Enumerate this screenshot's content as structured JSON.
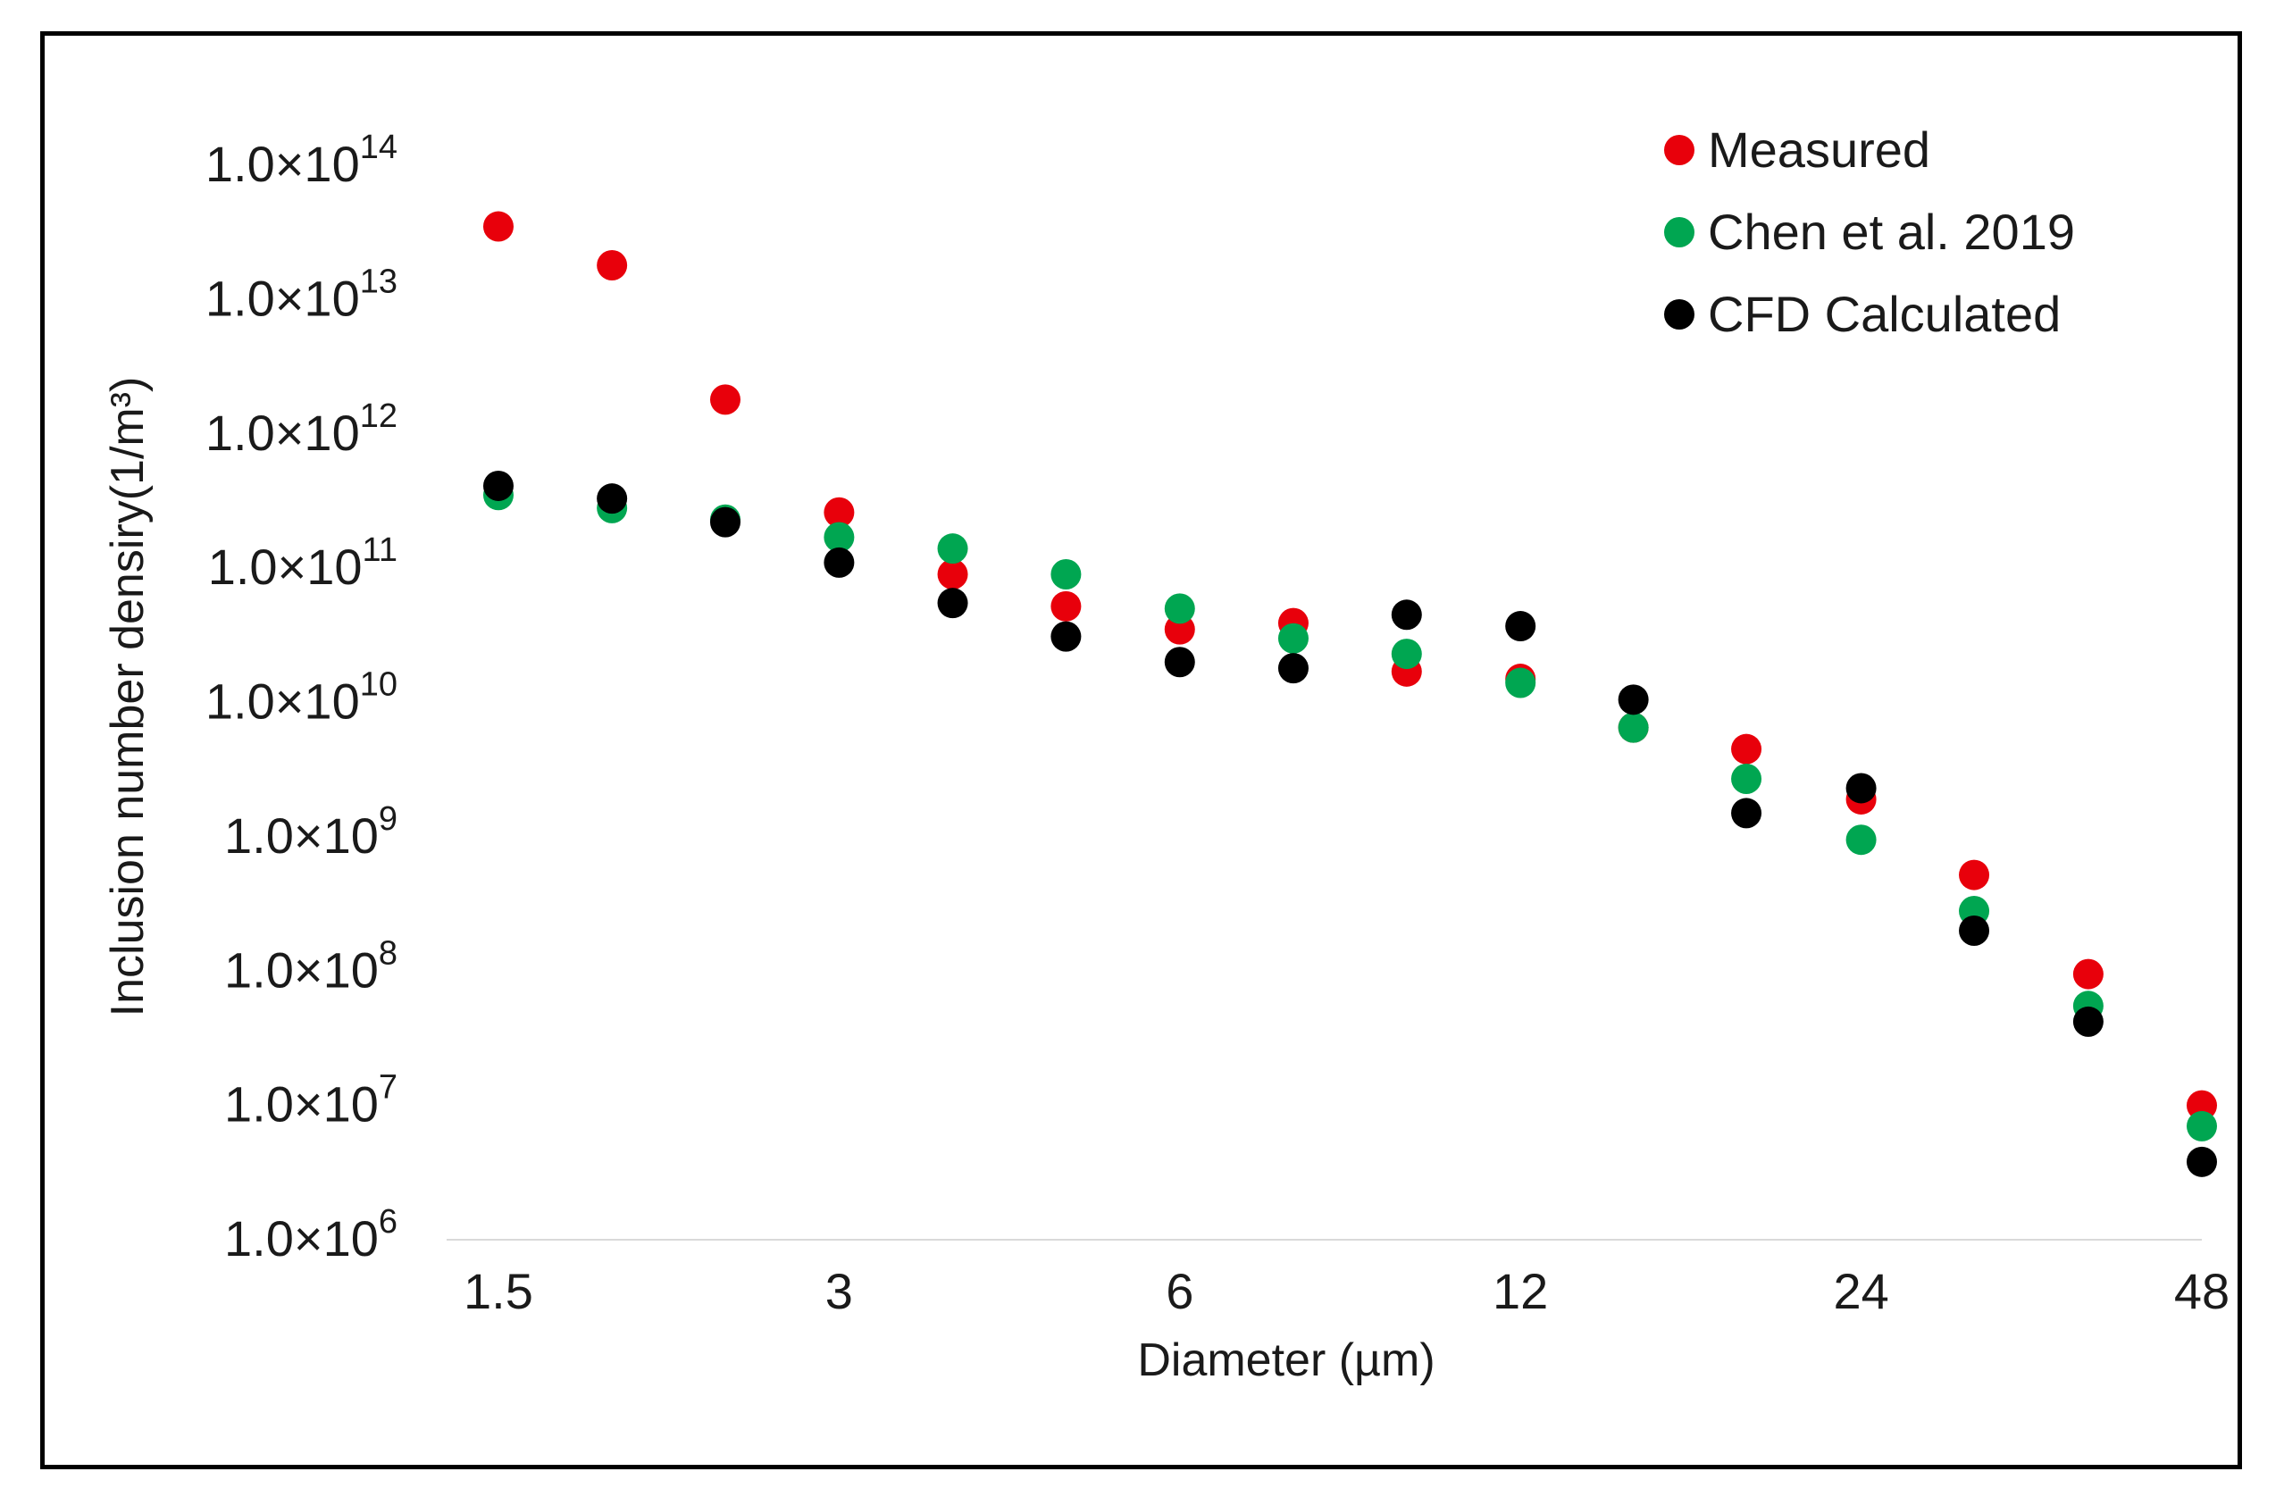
{
  "chart_data": {
    "type": "scatter",
    "title": "",
    "xlabel": "Diameter (µm)",
    "ylabel": "Inclusion number densiry(1/m³)",
    "x_scale": "log2",
    "y_scale": "log10",
    "xlim": [
      1.35,
      48
    ],
    "ylim": [
      1000000,
      100000000000000
    ],
    "x_ticks": [
      {
        "value": 1.5,
        "label": "1.5"
      },
      {
        "value": 3,
        "label": "3"
      },
      {
        "value": 6,
        "label": "6"
      },
      {
        "value": 12,
        "label": "12"
      },
      {
        "value": 24,
        "label": "24"
      },
      {
        "value": 48,
        "label": "48"
      }
    ],
    "y_ticks": [
      {
        "value": 1000000,
        "mantissa": "1.0×10",
        "exp": "6"
      },
      {
        "value": 10000000,
        "mantissa": "1.0×10",
        "exp": "7"
      },
      {
        "value": 100000000,
        "mantissa": "1.0×10",
        "exp": "8"
      },
      {
        "value": 1000000000,
        "mantissa": "1.0×10",
        "exp": "9"
      },
      {
        "value": 10000000000,
        "mantissa": "1.0×10",
        "exp": "10"
      },
      {
        "value": 100000000000,
        "mantissa": "1.0×10",
        "exp": "11"
      },
      {
        "value": 1000000000000,
        "mantissa": "1.0×10",
        "exp": "12"
      },
      {
        "value": 10000000000000,
        "mantissa": "1.0×10",
        "exp": "13"
      },
      {
        "value": 100000000000000,
        "mantissa": "1.0×10",
        "exp": "14"
      }
    ],
    "legend_position": "top-right",
    "series": [
      {
        "name": "Measured",
        "color": "#e8000b",
        "x": [
          1.5,
          1.89,
          2.38,
          3.0,
          3.78,
          4.76,
          6.0,
          7.56,
          9.52,
          12.0,
          15.1,
          19.0,
          24.0,
          30.2,
          38.1,
          48.0
        ],
        "values": [
          35000000000000,
          18000000000000,
          1800000000000,
          260000000000,
          90000000000,
          52000000000,
          35000000000,
          39000000000,
          17000000000,
          15000000000,
          6500000000,
          4500000000,
          1900000000,
          520000000,
          95000000,
          10000000
        ]
      },
      {
        "name": "Chen et al. 2019",
        "color": "#00a651",
        "x": [
          1.5,
          1.89,
          2.38,
          3.0,
          3.78,
          4.76,
          6.0,
          7.56,
          9.52,
          12.0,
          15.1,
          19.0,
          24.0,
          30.2,
          38.1,
          48.0
        ],
        "values": [
          350000000000,
          280000000000,
          230000000000,
          170000000000,
          140000000000,
          90000000000,
          50000000000,
          30000000000,
          23000000000,
          14000000000,
          6500000000,
          2700000000,
          950000000,
          280000000,
          55000000,
          7000000
        ]
      },
      {
        "name": "CFD Calculated",
        "color": "#000000",
        "x": [
          1.5,
          1.89,
          2.38,
          3.0,
          3.78,
          4.76,
          6.0,
          7.56,
          9.52,
          12.0,
          15.1,
          19.0,
          24.0,
          30.2,
          38.1,
          48.0
        ],
        "values": [
          410000000000,
          330000000000,
          220000000000,
          110000000000,
          55000000000,
          31000000000,
          20000000000,
          18000000000,
          45000000000,
          37000000000,
          10500000000,
          1500000000,
          2300000000,
          200000000,
          42000000,
          3800000
        ]
      }
    ]
  }
}
